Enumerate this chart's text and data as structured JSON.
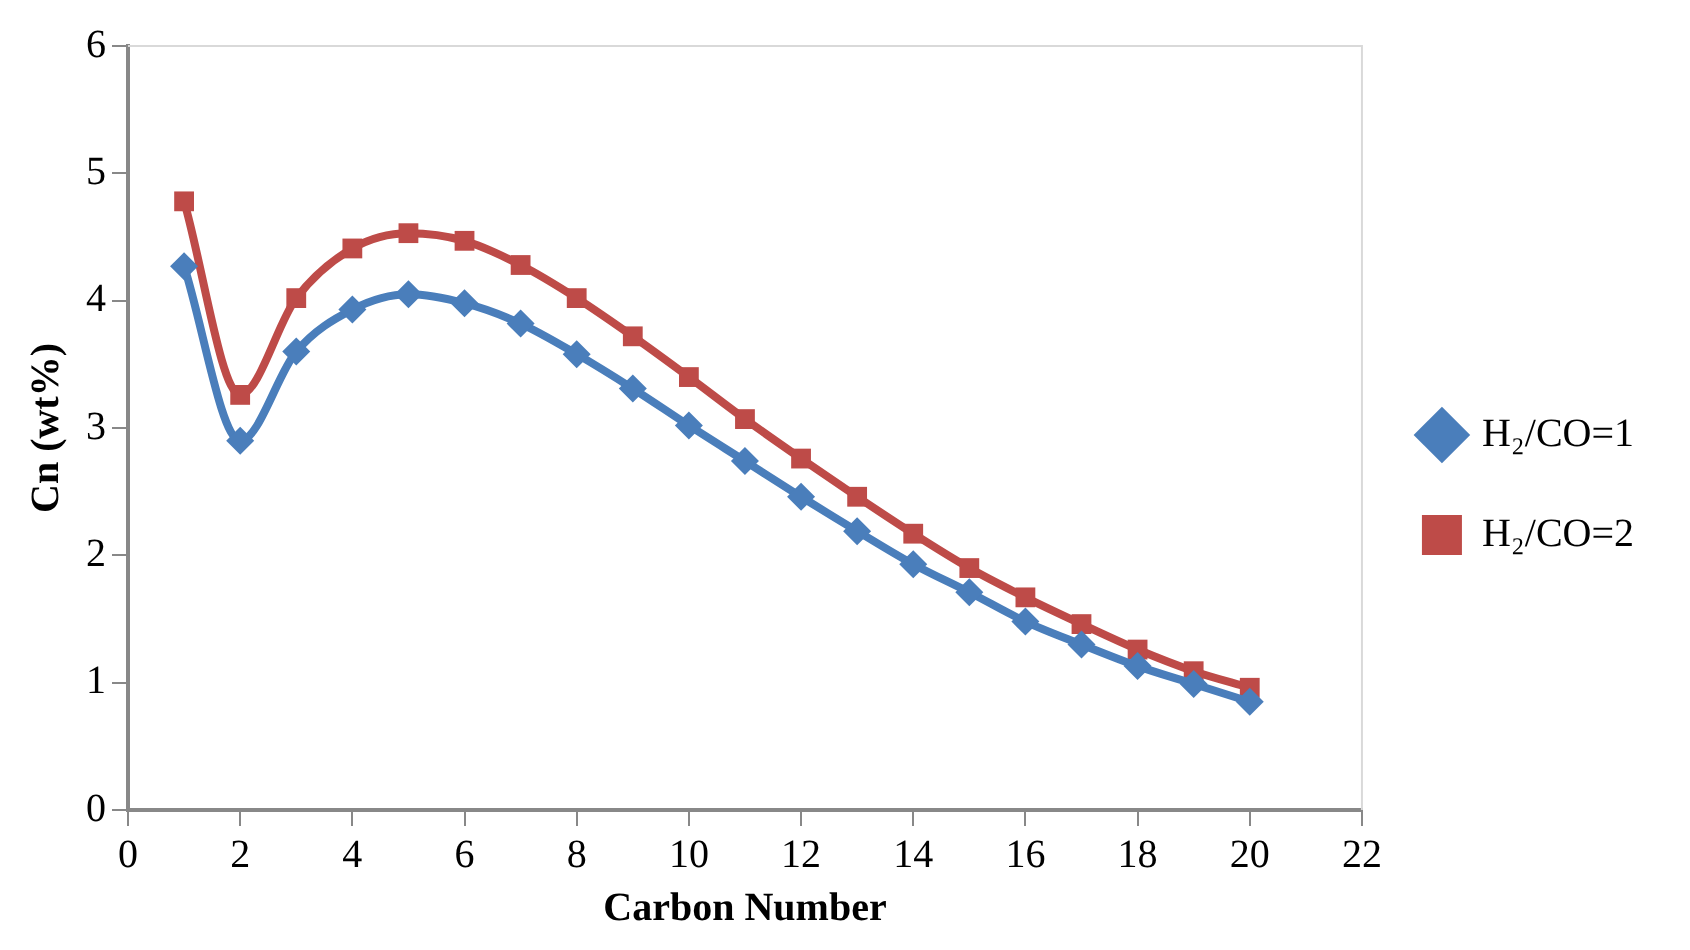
{
  "chart_data": {
    "type": "line",
    "xlabel": "Carbon Number",
    "ylabel": "Cn (wt%)",
    "x": [
      1,
      2,
      3,
      4,
      5,
      6,
      7,
      8,
      9,
      10,
      11,
      12,
      13,
      14,
      15,
      16,
      17,
      18,
      19,
      20
    ],
    "series": [
      {
        "name": "H₂/CO=1",
        "color": "#4a7ebb",
        "marker": "diamond",
        "values": [
          4.27,
          2.9,
          3.6,
          3.93,
          4.05,
          3.98,
          3.82,
          3.58,
          3.31,
          3.02,
          2.74,
          2.46,
          2.19,
          1.93,
          1.71,
          1.48,
          1.3,
          1.13,
          0.99,
          0.85
        ]
      },
      {
        "name": "H₂/CO=2",
        "color": "#be4b48",
        "marker": "square",
        "values": [
          4.78,
          3.26,
          4.02,
          4.41,
          4.53,
          4.47,
          4.28,
          4.02,
          3.72,
          3.4,
          3.07,
          2.76,
          2.46,
          2.17,
          1.9,
          1.67,
          1.46,
          1.26,
          1.09,
          0.96
        ]
      }
    ],
    "xlim": [
      0,
      22
    ],
    "xticks": [
      0,
      2,
      4,
      6,
      8,
      10,
      12,
      14,
      16,
      18,
      20,
      22
    ],
    "ylim": [
      0,
      6
    ],
    "yticks": [
      0,
      1,
      2,
      3,
      4,
      5,
      6
    ],
    "grid": false,
    "legend": "right"
  }
}
